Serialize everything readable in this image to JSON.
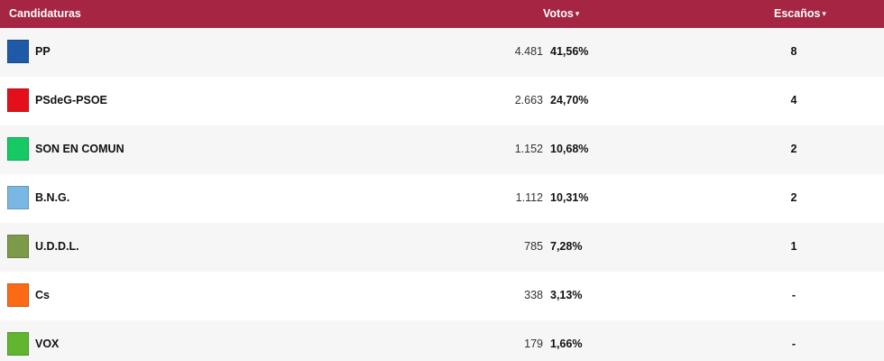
{
  "header": {
    "candidaturas": "Candidaturas",
    "votos": "Votos",
    "escanos": "Escaños",
    "sort_caret": "▾"
  },
  "rows": [
    {
      "name": "PP",
      "votes": "4.481",
      "pct": "41,56%",
      "seats": "8",
      "color": "#1f5aa6"
    },
    {
      "name": "PSdeG-PSOE",
      "votes": "2.663",
      "pct": "24,70%",
      "seats": "4",
      "color": "#e3101b"
    },
    {
      "name": "SON EN COMUN",
      "votes": "1.152",
      "pct": "10,68%",
      "seats": "2",
      "color": "#17c964"
    },
    {
      "name": "B.N.G.",
      "votes": "1.112",
      "pct": "10,31%",
      "seats": "2",
      "color": "#7ab7e2"
    },
    {
      "name": "U.D.D.L.",
      "votes": "785",
      "pct": "7,28%",
      "seats": "1",
      "color": "#7d9a4a"
    },
    {
      "name": "Cs",
      "votes": "338",
      "pct": "3,13%",
      "seats": "-",
      "color": "#fb6a14"
    },
    {
      "name": "VOX",
      "votes": "179",
      "pct": "1,66%",
      "seats": "-",
      "color": "#61b52f"
    }
  ]
}
